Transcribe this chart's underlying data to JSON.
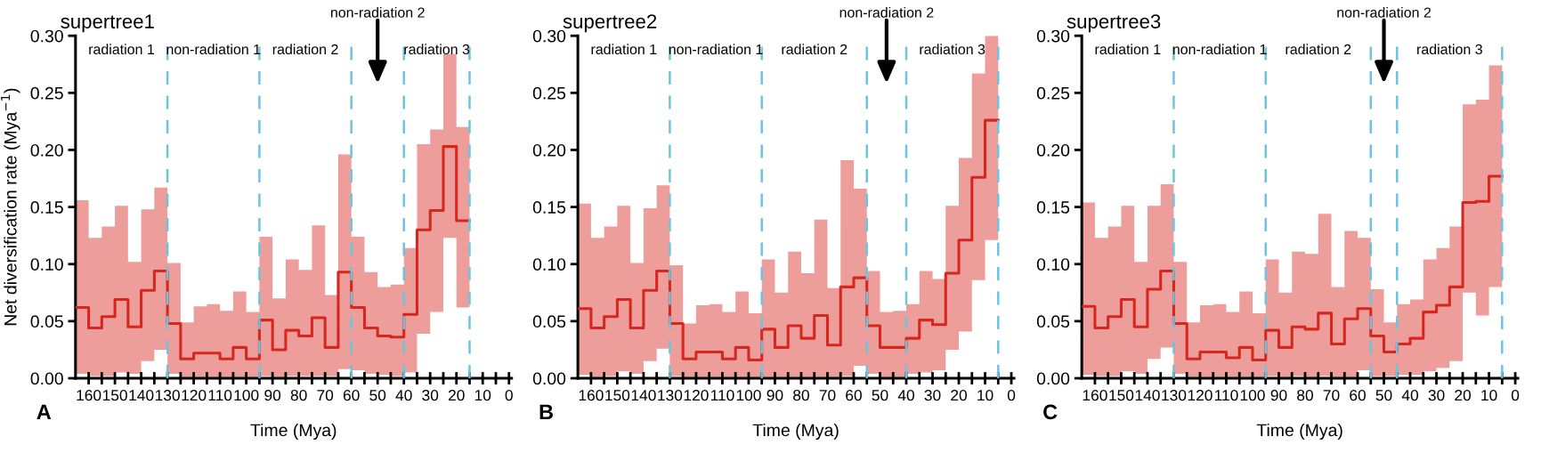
{
  "chart_data": [
    {
      "type": "step",
      "title": "supertree1",
      "xlabel": "Time (Mya)",
      "ylabel": "Net diversification rate (Mya$^{−1}$)",
      "series": [
        {
          "color": "#d7261e",
          "x": [
            165,
            160,
            155,
            150,
            145,
            140,
            135,
            130,
            125,
            120,
            115,
            110,
            105,
            100,
            95,
            90,
            85,
            80,
            75,
            70,
            65,
            60,
            55,
            50,
            45,
            40,
            35,
            30,
            25,
            20,
            15
          ],
          "values": [
            0.062,
            0.044,
            0.054,
            0.069,
            0.045,
            0.077,
            0.094,
            0.048,
            0.017,
            0.022,
            0.022,
            0.017,
            0.027,
            0.017,
            0.051,
            0.025,
            0.042,
            0.037,
            0.053,
            0.027,
            0.093,
            0.062,
            0.044,
            0.037,
            0.036,
            0.056,
            0.13,
            0.147,
            0.203,
            0.138,
            0.138
          ],
          "upper": [
            0.156,
            0.123,
            0.133,
            0.151,
            0.102,
            0.148,
            0.167,
            0.101,
            0.049,
            0.063,
            0.065,
            0.059,
            0.076,
            0.058,
            0.124,
            0.07,
            0.104,
            0.095,
            0.134,
            0.073,
            0.196,
            0.124,
            0.093,
            0.08,
            0.082,
            0.114,
            0.205,
            0.218,
            0.284,
            0.22,
            0.22
          ],
          "lower": [
            0.004,
            0.002,
            0.002,
            0.005,
            0.004,
            0.015,
            0.025,
            0.004,
            0.001,
            0.001,
            0.001,
            0.001,
            0.001,
            0.001,
            0.002,
            0.001,
            0.002,
            0.002,
            0.002,
            0.002,
            0.008,
            0.007,
            0.004,
            0.003,
            0.002,
            0.005,
            0.039,
            0.058,
            0.123,
            0.062,
            0.062
          ]
        }
      ],
      "ref_lines": [
        {
          "axis": "x",
          "value": 130,
          "color": "#6cc5e0",
          "line_style": "dashed"
        },
        {
          "axis": "x",
          "value": 95,
          "color": "#6cc5e0",
          "line_style": "dashed"
        },
        {
          "axis": "x",
          "value": 60,
          "color": "#6cc5e0",
          "line_style": "dashed"
        },
        {
          "axis": "x",
          "value": 40,
          "color": "#6cc5e0",
          "line_style": "dashed"
        },
        {
          "axis": "x",
          "value": 15,
          "color": "#6cc5e0",
          "line_style": "dashed"
        }
      ],
      "annotations": [
        "radiation 1",
        "non-radiation 1",
        "radiation 2",
        "non-radiation 2",
        "radiation 3",
        "A"
      ],
      "xlim": [
        165,
        -1
      ],
      "xticks": [
        160,
        {
          "value": 155,
          "label": null
        },
        150,
        {
          "value": 145,
          "label": null
        },
        140,
        {
          "value": 135,
          "label": null
        },
        130,
        {
          "value": 125,
          "label": null
        },
        120,
        {
          "value": 115,
          "label": null
        },
        110,
        {
          "value": 105,
          "label": null
        },
        100,
        {
          "value": 95,
          "label": null
        },
        90,
        {
          "value": 85,
          "label": null
        },
        80,
        {
          "value": 75,
          "label": null
        },
        70,
        {
          "value": 65,
          "label": null
        },
        60,
        {
          "value": 55,
          "label": null
        },
        50,
        {
          "value": 45,
          "label": null
        },
        40,
        {
          "value": 35,
          "label": null
        },
        30,
        {
          "value": 25,
          "label": null
        },
        20,
        {
          "value": 15,
          "label": null
        },
        10,
        {
          "value": 5,
          "label": null
        },
        0
      ],
      "ylim": [
        0,
        0.3
      ],
      "yticks": [
        {
          "value": 0,
          "label": "0.00"
        },
        {
          "value": 0.05,
          "label": "0.05"
        },
        {
          "value": 0.1,
          "label": "0.10"
        },
        {
          "value": 0.15,
          "label": "0.15"
        },
        {
          "value": 0.2,
          "label": "0.20"
        },
        {
          "value": 0.25,
          "label": "0.25"
        },
        {
          "value": 0.3,
          "label": "0.30"
        }
      ]
    },
    {
      "type": "step",
      "title": "supertree2",
      "xlabel": "Time (Mya)",
      "series": [
        {
          "color": "#d7261e",
          "x": [
            165,
            160,
            155,
            150,
            145,
            140,
            135,
            130,
            125,
            120,
            115,
            110,
            105,
            100,
            95,
            90,
            85,
            80,
            75,
            70,
            65,
            60,
            55,
            50,
            45,
            40,
            35,
            30,
            25,
            20,
            15,
            10,
            5
          ],
          "values": [
            0.061,
            0.044,
            0.054,
            0.069,
            0.044,
            0.077,
            0.094,
            0.048,
            0.017,
            0.023,
            0.023,
            0.017,
            0.027,
            0.016,
            0.043,
            0.027,
            0.046,
            0.035,
            0.055,
            0.029,
            0.08,
            0.088,
            0.046,
            0.027,
            0.027,
            0.035,
            0.051,
            0.047,
            0.092,
            0.121,
            0.176,
            0.226,
            0.226
          ],
          "upper": [
            0.153,
            0.123,
            0.133,
            0.151,
            0.101,
            0.149,
            0.169,
            0.099,
            0.048,
            0.064,
            0.065,
            0.058,
            0.076,
            0.057,
            0.104,
            0.075,
            0.111,
            0.092,
            0.139,
            0.079,
            0.191,
            0.166,
            0.094,
            0.058,
            0.059,
            0.065,
            0.094,
            0.087,
            0.151,
            0.193,
            0.267,
            0.3,
            0.3
          ],
          "lower": [
            0.003,
            0.001,
            0.002,
            0.006,
            0.004,
            0.015,
            0.026,
            0.002,
            0.001,
            0.001,
            0.001,
            0.001,
            0.001,
            0.001,
            0.001,
            0.001,
            0.001,
            0.001,
            0.001,
            0.001,
            0.002,
            0.011,
            0.004,
            0.001,
            0.001,
            0.004,
            0.005,
            0.007,
            0.025,
            0.041,
            0.086,
            0.121,
            0.121
          ]
        }
      ],
      "ref_lines": [
        {
          "axis": "x",
          "value": 130,
          "color": "#6cc5e0",
          "line_style": "dashed"
        },
        {
          "axis": "x",
          "value": 95,
          "color": "#6cc5e0",
          "line_style": "dashed"
        },
        {
          "axis": "x",
          "value": 55,
          "color": "#6cc5e0",
          "line_style": "dashed"
        },
        {
          "axis": "x",
          "value": 40,
          "color": "#6cc5e0",
          "line_style": "dashed"
        },
        {
          "axis": "x",
          "value": 5,
          "color": "#6cc5e0",
          "line_style": "dashed"
        }
      ],
      "annotations": [
        "radiation 1",
        "non-radiation 1",
        "radiation 2",
        "non-radiation 2",
        "radiation 3",
        "B"
      ],
      "xlim": [
        165,
        -1
      ],
      "xticks": [
        160,
        {
          "value": 155,
          "label": null
        },
        150,
        {
          "value": 145,
          "label": null
        },
        140,
        {
          "value": 135,
          "label": null
        },
        130,
        {
          "value": 125,
          "label": null
        },
        120,
        {
          "value": 115,
          "label": null
        },
        110,
        {
          "value": 105,
          "label": null
        },
        100,
        {
          "value": 95,
          "label": null
        },
        90,
        {
          "value": 85,
          "label": null
        },
        80,
        {
          "value": 75,
          "label": null
        },
        70,
        {
          "value": 65,
          "label": null
        },
        60,
        {
          "value": 55,
          "label": null
        },
        50,
        {
          "value": 45,
          "label": null
        },
        40,
        {
          "value": 35,
          "label": null
        },
        30,
        {
          "value": 25,
          "label": null
        },
        20,
        {
          "value": 15,
          "label": null
        },
        10,
        {
          "value": 5,
          "label": null
        },
        0
      ],
      "ylim": [
        0,
        0.3
      ],
      "yticks": [
        {
          "value": 0,
          "label": "0.00"
        },
        {
          "value": 0.05,
          "label": "0.05"
        },
        {
          "value": 0.1,
          "label": "0.10"
        },
        {
          "value": 0.15,
          "label": "0.15"
        },
        {
          "value": 0.2,
          "label": "0.20"
        },
        {
          "value": 0.25,
          "label": "0.25"
        },
        {
          "value": 0.3,
          "label": "0.30"
        }
      ]
    },
    {
      "type": "step",
      "title": "supertree3",
      "xlabel": "Time (Mya)",
      "series": [
        {
          "color": "#d7261e",
          "x": [
            165,
            160,
            155,
            150,
            145,
            140,
            135,
            130,
            125,
            120,
            115,
            110,
            105,
            100,
            95,
            90,
            85,
            80,
            75,
            70,
            65,
            60,
            55,
            50,
            45,
            40,
            35,
            30,
            25,
            20,
            15,
            10,
            5
          ],
          "values": [
            0.063,
            0.044,
            0.054,
            0.069,
            0.045,
            0.078,
            0.094,
            0.048,
            0.017,
            0.023,
            0.023,
            0.018,
            0.027,
            0.016,
            0.042,
            0.027,
            0.045,
            0.043,
            0.057,
            0.03,
            0.052,
            0.061,
            0.037,
            0.023,
            0.03,
            0.035,
            0.058,
            0.064,
            0.08,
            0.154,
            0.155,
            0.177,
            0.177
          ],
          "upper": [
            0.154,
            0.123,
            0.133,
            0.151,
            0.102,
            0.151,
            0.17,
            0.102,
            0.049,
            0.064,
            0.065,
            0.058,
            0.076,
            0.057,
            0.104,
            0.075,
            0.111,
            0.109,
            0.144,
            0.08,
            0.129,
            0.123,
            0.078,
            0.049,
            0.065,
            0.069,
            0.104,
            0.114,
            0.133,
            0.24,
            0.244,
            0.274,
            0.274
          ],
          "lower": [
            0.003,
            0.002,
            0.002,
            0.006,
            0.004,
            0.017,
            0.027,
            0.004,
            0.001,
            0.001,
            0.001,
            0.001,
            0.001,
            0.001,
            0.002,
            0.001,
            0.002,
            0.001,
            0.002,
            0.001,
            0.001,
            0.007,
            0.002,
            0.002,
            0.003,
            0.003,
            0.006,
            0.009,
            0.015,
            0.075,
            0.055,
            0.08,
            0.08
          ]
        }
      ],
      "ref_lines": [
        {
          "axis": "x",
          "value": 130,
          "color": "#6cc5e0",
          "line_style": "dashed"
        },
        {
          "axis": "x",
          "value": 95,
          "color": "#6cc5e0",
          "line_style": "dashed"
        },
        {
          "axis": "x",
          "value": 55,
          "color": "#6cc5e0",
          "line_style": "dashed"
        },
        {
          "axis": "x",
          "value": 45,
          "color": "#6cc5e0",
          "line_style": "dashed"
        },
        {
          "axis": "x",
          "value": 5,
          "color": "#6cc5e0",
          "line_style": "dashed"
        }
      ],
      "annotations": [
        "radiation 1",
        "non-radiation 1",
        "radiation 2",
        "non-radiation 2",
        "radiation 3",
        "C"
      ],
      "xlim": [
        165,
        -1
      ],
      "xticks": [
        160,
        {
          "value": 155,
          "label": null
        },
        150,
        {
          "value": 145,
          "label": null
        },
        140,
        {
          "value": 135,
          "label": null
        },
        130,
        {
          "value": 125,
          "label": null
        },
        120,
        {
          "value": 115,
          "label": null
        },
        110,
        {
          "value": 105,
          "label": null
        },
        100,
        {
          "value": 95,
          "label": null
        },
        90,
        {
          "value": 85,
          "label": null
        },
        80,
        {
          "value": 75,
          "label": null
        },
        70,
        {
          "value": 65,
          "label": null
        },
        60,
        {
          "value": 55,
          "label": null
        },
        50,
        {
          "value": 45,
          "label": null
        },
        40,
        {
          "value": 35,
          "label": null
        },
        30,
        {
          "value": 25,
          "label": null
        },
        20,
        {
          "value": 15,
          "label": null
        },
        10,
        {
          "value": 5,
          "label": null
        },
        0
      ],
      "ylim": [
        0,
        0.3
      ],
      "yticks": [
        {
          "value": 0,
          "label": "0.00"
        },
        {
          "value": 0.05,
          "label": "0.05"
        },
        {
          "value": 0.1,
          "label": "0.10"
        },
        {
          "value": 0.15,
          "label": "0.15"
        },
        {
          "value": 0.2,
          "label": "0.20"
        },
        {
          "value": 0.25,
          "label": "0.25"
        },
        {
          "value": 0.3,
          "label": "0.30"
        }
      ]
    }
  ]
}
